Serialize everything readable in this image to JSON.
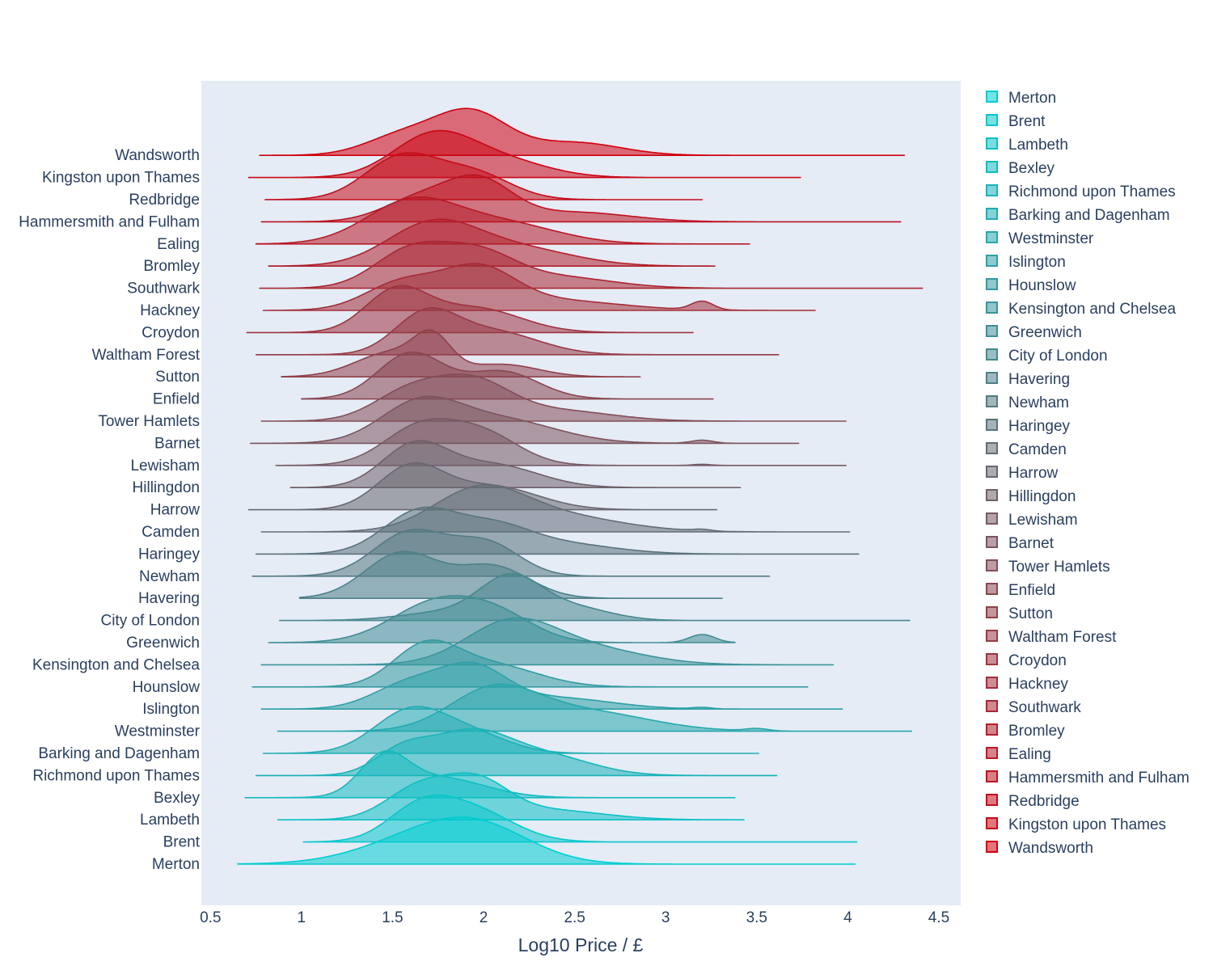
{
  "chart_data": {
    "type": "area",
    "subtype": "ridgeline",
    "title": "",
    "xlabel": "Log10 Price / £",
    "ylabel": "",
    "xlim": [
      0.45,
      4.62
    ],
    "xticks": [
      0.5,
      1,
      1.5,
      2,
      2.5,
      3,
      3.5,
      4,
      4.5
    ],
    "xtick_labels": [
      "0.5",
      "1",
      "1.5",
      "2",
      "2.5",
      "3",
      "3.5",
      "4",
      "4.5"
    ],
    "grid": false,
    "legend_position": "right",
    "color_start": "#00cdd1",
    "color_end": "#d1000e",
    "plot_background": "#e5ecf6",
    "series": [
      {
        "name": "Merton",
        "range": [
          0.65,
          4.04
        ],
        "peaks": [
          [
            1.7,
            0.34,
            1.0
          ],
          [
            2.0,
            0.28,
            0.9
          ]
        ],
        "bumps": []
      },
      {
        "name": "Brent",
        "range": [
          1.01,
          4.05
        ],
        "peaks": [
          [
            1.65,
            0.18,
            1.0
          ],
          [
            1.95,
            0.22,
            0.95
          ]
        ],
        "bumps": []
      },
      {
        "name": "Lambeth",
        "range": [
          0.87,
          3.43
        ],
        "peaks": [
          [
            1.65,
            0.18,
            1.0
          ],
          [
            1.97,
            0.17,
            1.05
          ],
          [
            2.35,
            0.3,
            0.3
          ]
        ],
        "bumps": []
      },
      {
        "name": "Bexley",
        "range": [
          0.69,
          3.38
        ],
        "peaks": [
          [
            1.45,
            0.13,
            1.0
          ],
          [
            1.75,
            0.25,
            0.55
          ]
        ],
        "bumps": []
      },
      {
        "name": "Richmond upon Thames",
        "range": [
          0.75,
          3.61
        ],
        "peaks": [
          [
            1.92,
            0.22,
            1.0
          ],
          [
            1.55,
            0.15,
            0.55
          ],
          [
            2.35,
            0.25,
            0.45
          ]
        ],
        "bumps": []
      },
      {
        "name": "Barking and Dagenham",
        "range": [
          0.79,
          3.51
        ],
        "peaks": [
          [
            1.6,
            0.2,
            1.0
          ],
          [
            1.95,
            0.2,
            0.4
          ]
        ],
        "bumps": []
      },
      {
        "name": "Westminster",
        "range": [
          0.87,
          4.35
        ],
        "peaks": [
          [
            2.05,
            0.24,
            1.0
          ],
          [
            2.55,
            0.35,
            0.5
          ]
        ],
        "bumps": [
          [
            3.5,
            0.06,
            0.06
          ]
        ]
      },
      {
        "name": "Islington",
        "range": [
          0.78,
          3.97
        ],
        "peaks": [
          [
            1.95,
            0.18,
            1.0
          ],
          [
            1.6,
            0.2,
            0.7
          ],
          [
            2.4,
            0.3,
            0.3
          ]
        ],
        "bumps": [
          [
            3.2,
            0.05,
            0.04
          ]
        ]
      },
      {
        "name": "Hounslow",
        "range": [
          0.73,
          3.78
        ],
        "peaks": [
          [
            1.68,
            0.18,
            1.0
          ],
          [
            2.05,
            0.25,
            0.55
          ]
        ],
        "bumps": []
      },
      {
        "name": "Kensington and Chelsea",
        "range": [
          0.78,
          3.92
        ],
        "peaks": [
          [
            2.15,
            0.25,
            1.0
          ],
          [
            2.6,
            0.3,
            0.35
          ]
        ],
        "bumps": []
      },
      {
        "name": "Greenwich",
        "range": [
          0.82,
          3.38
        ],
        "peaks": [
          [
            1.75,
            0.25,
            1.0
          ],
          [
            2.1,
            0.2,
            0.5
          ]
        ],
        "bumps": [
          [
            3.2,
            0.07,
            0.2
          ]
        ]
      },
      {
        "name": "City of London",
        "range": [
          0.88,
          4.34
        ],
        "peaks": [
          [
            2.15,
            0.17,
            1.0
          ],
          [
            2.5,
            0.2,
            0.3
          ],
          [
            1.8,
            0.25,
            0.2
          ]
        ],
        "bumps": []
      },
      {
        "name": "Havering",
        "range": [
          0.99,
          3.31
        ],
        "peaks": [
          [
            1.55,
            0.2,
            1.0
          ],
          [
            2.05,
            0.2,
            0.7
          ]
        ],
        "bumps": []
      },
      {
        "name": "Newham",
        "range": [
          0.73,
          3.57
        ],
        "peaks": [
          [
            1.6,
            0.2,
            1.0
          ],
          [
            2.02,
            0.18,
            0.72
          ]
        ],
        "bumps": []
      },
      {
        "name": "Haringey",
        "range": [
          0.75,
          4.06
        ],
        "peaks": [
          [
            1.65,
            0.2,
            1.0
          ],
          [
            2.05,
            0.2,
            0.55
          ],
          [
            2.4,
            0.3,
            0.25
          ]
        ],
        "bumps": []
      },
      {
        "name": "Camden",
        "range": [
          0.78,
          4.01
        ],
        "peaks": [
          [
            1.97,
            0.25,
            1.0
          ],
          [
            2.4,
            0.35,
            0.4
          ]
        ],
        "bumps": [
          [
            3.2,
            0.05,
            0.04
          ]
        ]
      },
      {
        "name": "Harrow",
        "range": [
          0.71,
          3.28
        ],
        "peaks": [
          [
            1.6,
            0.18,
            1.0
          ],
          [
            2.05,
            0.25,
            0.55
          ]
        ],
        "bumps": []
      },
      {
        "name": "Hillingdon",
        "range": [
          0.94,
          3.41
        ],
        "peaks": [
          [
            1.62,
            0.18,
            1.0
          ],
          [
            2.05,
            0.25,
            0.55
          ]
        ],
        "bumps": []
      },
      {
        "name": "Lewisham",
        "range": [
          0.86,
          3.99
        ],
        "peaks": [
          [
            1.65,
            0.2,
            1.0
          ],
          [
            2.0,
            0.2,
            0.8
          ]
        ],
        "bumps": [
          [
            3.2,
            0.05,
            0.03
          ]
        ]
      },
      {
        "name": "Barnet",
        "range": [
          0.72,
          3.73
        ],
        "peaks": [
          [
            1.65,
            0.22,
            1.0
          ],
          [
            2.1,
            0.3,
            0.6
          ]
        ],
        "bumps": [
          [
            3.2,
            0.06,
            0.08
          ]
        ]
      },
      {
        "name": "Tower Hamlets",
        "range": [
          0.78,
          3.99
        ],
        "peaks": [
          [
            1.95,
            0.2,
            1.0
          ],
          [
            1.6,
            0.2,
            0.85
          ],
          [
            2.4,
            0.3,
            0.3
          ]
        ],
        "bumps": []
      },
      {
        "name": "Enfield",
        "range": [
          1.0,
          3.26
        ],
        "peaks": [
          [
            1.6,
            0.18,
            1.0
          ],
          [
            2.1,
            0.2,
            0.6
          ]
        ],
        "bumps": []
      },
      {
        "name": "Sutton",
        "range": [
          0.89,
          2.86
        ],
        "peaks": [
          [
            1.72,
            0.1,
            1.0
          ],
          [
            1.5,
            0.2,
            0.8
          ],
          [
            2.1,
            0.2,
            0.4
          ]
        ],
        "bumps": []
      },
      {
        "name": "Waltham Forest",
        "range": [
          0.75,
          3.62
        ],
        "peaks": [
          [
            1.68,
            0.17,
            1.0
          ],
          [
            2.05,
            0.25,
            0.6
          ]
        ],
        "bumps": []
      },
      {
        "name": "Croydon",
        "range": [
          0.7,
          3.15
        ],
        "peaks": [
          [
            1.52,
            0.17,
            1.0
          ],
          [
            1.95,
            0.25,
            0.6
          ]
        ],
        "bumps": []
      },
      {
        "name": "Hackney",
        "range": [
          0.79,
          3.82
        ],
        "peaks": [
          [
            1.97,
            0.2,
            1.0
          ],
          [
            1.55,
            0.2,
            0.7
          ],
          [
            2.4,
            0.35,
            0.25
          ]
        ],
        "bumps": [
          [
            3.2,
            0.06,
            0.22
          ]
        ]
      },
      {
        "name": "Southwark",
        "range": [
          0.77,
          4.41
        ],
        "peaks": [
          [
            1.6,
            0.2,
            1.0
          ],
          [
            1.97,
            0.2,
            0.85
          ],
          [
            2.4,
            0.3,
            0.3
          ]
        ],
        "bumps": []
      },
      {
        "name": "Bromley",
        "range": [
          0.82,
          3.27
        ],
        "peaks": [
          [
            1.72,
            0.25,
            1.0
          ],
          [
            2.2,
            0.3,
            0.4
          ]
        ],
        "bumps": []
      },
      {
        "name": "Ealing",
        "range": [
          0.75,
          3.46
        ],
        "peaks": [
          [
            1.6,
            0.25,
            1.0
          ],
          [
            2.1,
            0.3,
            0.5
          ]
        ],
        "bumps": []
      },
      {
        "name": "Hammersmith and Fulham",
        "range": [
          0.78,
          4.29
        ],
        "peaks": [
          [
            1.98,
            0.18,
            1.0
          ],
          [
            1.65,
            0.2,
            0.6
          ],
          [
            2.5,
            0.3,
            0.25
          ]
        ],
        "bumps": []
      },
      {
        "name": "Redbridge",
        "range": [
          0.8,
          3.2
        ],
        "peaks": [
          [
            1.55,
            0.2,
            1.0
          ],
          [
            1.95,
            0.2,
            0.6
          ]
        ],
        "bumps": []
      },
      {
        "name": "Kingston upon Thames",
        "range": [
          0.71,
          3.74
        ],
        "peaks": [
          [
            1.72,
            0.22,
            1.0
          ],
          [
            2.1,
            0.25,
            0.4
          ]
        ],
        "bumps": []
      },
      {
        "name": "Wandsworth",
        "range": [
          0.77,
          4.31
        ],
        "peaks": [
          [
            1.93,
            0.2,
            1.0
          ],
          [
            1.55,
            0.2,
            0.45
          ],
          [
            2.5,
            0.25,
            0.3
          ]
        ],
        "bumps": []
      }
    ]
  }
}
